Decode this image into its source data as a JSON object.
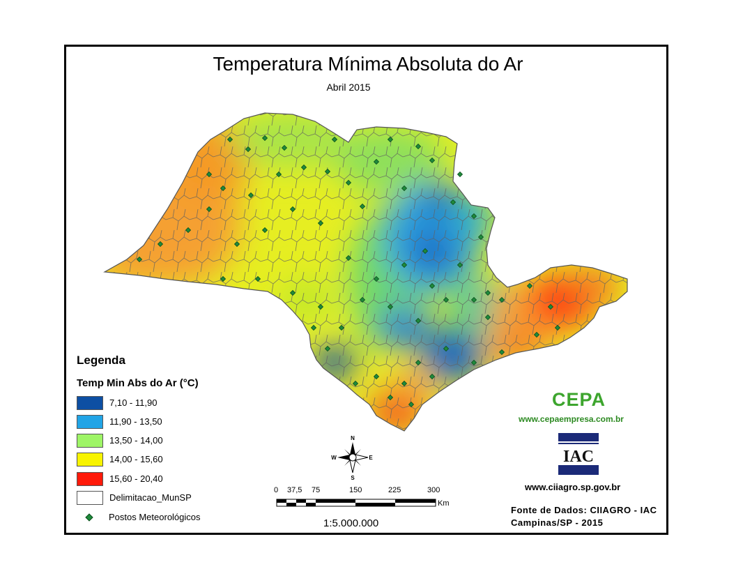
{
  "title": "Temperatura Mínima Absoluta do Ar",
  "subtitle": "Abril 2015",
  "legend": {
    "heading": "Legenda",
    "variable": "Temp Min Abs do Ar (°C)",
    "classes": [
      {
        "label": "7,10 - 11,90",
        "color": "#0d4fa3"
      },
      {
        "label": "11,90 - 13,50",
        "color": "#21a4e6"
      },
      {
        "label": "13,50 - 14,00",
        "color": "#9ef566"
      },
      {
        "label": "14,00 - 15,60",
        "color": "#f8f400"
      },
      {
        "label": "15,60 - 20,40",
        "color": "#ff1a0a"
      },
      {
        "label": "Delimitacao_MunSP",
        "color": "#ffffff"
      }
    ],
    "stations_label": "Postos Meteorológicos"
  },
  "compass": {
    "n": "N",
    "s": "S",
    "e": "E",
    "w": "W"
  },
  "scale": {
    "ticks": [
      "0",
      "37,5",
      "75",
      "150",
      "225",
      "300"
    ],
    "unit": "Km",
    "ratio": "1:5.000.000"
  },
  "logos": {
    "cepa_text": "CEPA",
    "cepa_url": "www.cepaempresa.com.br",
    "iac_text": "IAC",
    "iac_url": "www.ciiagro.sp.gov.br"
  },
  "source": {
    "line1": "Fonte de Dados: CIIAGRO - IAC",
    "line2": "Campinas/SP - 2015"
  },
  "map_colors": {
    "orange": "#f5a030",
    "yellow": "#e9f020",
    "green": "#8fe05a",
    "teal": "#30c890",
    "blue": "#2a9ee0",
    "dark_blue": "#1450a8",
    "red": "#ff2010",
    "municipal_border": "#606060",
    "station": "#1f8a3c"
  }
}
